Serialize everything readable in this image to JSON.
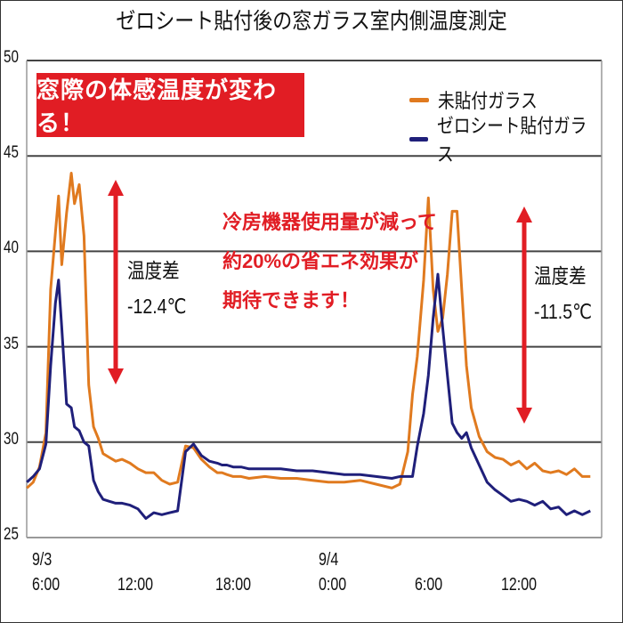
{
  "title": "ゼロシート貼付後の窓ガラス室内側温度測定",
  "banner": "窓際の体感温度が変わる！",
  "note_lines": [
    "冷房機器使用量が減って",
    "約20%の省エネ効果が",
    "期待できます！"
  ],
  "diff_left": {
    "label": "温度差",
    "value": "-12.4℃"
  },
  "diff_right": {
    "label": "温度差",
    "value": "-11.5℃"
  },
  "legend": [
    {
      "label": "未貼付ガラス",
      "color": "#e07a1f"
    },
    {
      "label": "ゼロシート貼付ガラス",
      "color": "#1f1f7a"
    }
  ],
  "colors": {
    "accent_red": "#e11d24",
    "orange": "#e07a1f",
    "navy": "#1f1f7a",
    "grid": "#444444"
  },
  "chart_data": {
    "type": "line",
    "title": "ゼロシート貼付後の窓ガラス室内側温度測定",
    "xlabel": "",
    "ylabel": "",
    "ylim": [
      25,
      50
    ],
    "yticks": [
      25,
      30,
      35,
      40,
      45,
      50
    ],
    "xtick_labels": [
      {
        "date": "9/3",
        "time": "6:00"
      },
      {
        "date": "",
        "time": "12:00"
      },
      {
        "date": "",
        "time": "18:00"
      },
      {
        "date": "9/4",
        "time": "0:00"
      },
      {
        "date": "",
        "time": "6:00"
      },
      {
        "date": "",
        "time": "12:00"
      }
    ],
    "x_unit": "hours since 9/3 6:00 (approx, x starts ~-1h)",
    "grid": true,
    "legend_position": "upper right",
    "x": [
      -1.0,
      -0.6,
      -0.2,
      0.2,
      0.5,
      0.8,
      1.0,
      1.2,
      1.5,
      1.8,
      2.0,
      2.3,
      2.6,
      2.9,
      3.2,
      3.5,
      3.8,
      4.2,
      4.6,
      5.0,
      5.5,
      6.0,
      6.5,
      7.0,
      7.5,
      8.0,
      8.5,
      9.0,
      9.5,
      10.0,
      10.5,
      11.0,
      11.3,
      11.6,
      12.0,
      12.5,
      13.0,
      14.0,
      15.0,
      16.0,
      17.0,
      18.0,
      19.0,
      20.0,
      21.0,
      22.0,
      22.5,
      23.0,
      23.3,
      23.6,
      24.0,
      24.3,
      24.6,
      24.9,
      25.2,
      25.5,
      25.8,
      26.1,
      26.4,
      26.7,
      27.0,
      27.5,
      28.0,
      28.5,
      29.0,
      29.5,
      30.0,
      30.5,
      31.0,
      31.5,
      32.0,
      32.5,
      33.0,
      33.5,
      34.0,
      34.5
    ],
    "series": [
      {
        "name": "未貼付ガラス",
        "color": "#e07a1f",
        "values": [
          27.6,
          27.9,
          28.7,
          30.5,
          38.0,
          41.0,
          42.9,
          39.3,
          42.0,
          44.1,
          42.5,
          43.5,
          40.8,
          33.0,
          30.8,
          30.2,
          29.4,
          29.2,
          29.0,
          29.1,
          28.9,
          28.6,
          28.4,
          28.4,
          28.0,
          27.8,
          27.9,
          29.8,
          29.7,
          29.1,
          28.7,
          28.4,
          28.4,
          28.3,
          28.2,
          28.2,
          28.1,
          28.2,
          28.1,
          28.1,
          28.0,
          27.9,
          27.9,
          28.0,
          27.8,
          27.6,
          27.8,
          29.5,
          32.5,
          34.5,
          38.5,
          42.8,
          38.0,
          35.8,
          36.5,
          38.8,
          42.1,
          42.1,
          38.0,
          34.0,
          31.8,
          30.3,
          29.5,
          29.2,
          29.1,
          28.8,
          29.0,
          28.6,
          28.9,
          28.5,
          28.4,
          28.5,
          28.3,
          28.6,
          28.2,
          28.2
        ]
      },
      {
        "name": "ゼロシート貼付ガラス",
        "color": "#1f1f7a",
        "values": [
          27.9,
          28.2,
          28.6,
          29.9,
          34.0,
          37.3,
          38.5,
          36.0,
          32.0,
          31.8,
          30.8,
          30.6,
          30.0,
          29.8,
          28.0,
          27.4,
          27.0,
          26.9,
          26.8,
          26.8,
          26.7,
          26.5,
          26.0,
          26.3,
          26.2,
          26.3,
          26.4,
          29.5,
          29.9,
          29.3,
          29.0,
          28.9,
          28.8,
          28.8,
          28.7,
          28.7,
          28.6,
          28.6,
          28.6,
          28.5,
          28.5,
          28.4,
          28.3,
          28.3,
          28.2,
          28.1,
          28.2,
          28.2,
          28.2,
          29.8,
          31.5,
          33.5,
          36.5,
          38.8,
          36.0,
          33.5,
          31.0,
          30.5,
          30.2,
          30.5,
          29.7,
          28.8,
          27.9,
          27.5,
          27.2,
          26.9,
          27.0,
          26.9,
          26.7,
          26.9,
          26.5,
          26.6,
          26.2,
          26.4,
          26.2,
          26.4
        ]
      }
    ],
    "annotations": [
      {
        "text": "温度差 -12.4℃",
        "type": "double-arrow",
        "color": "#e11d24"
      },
      {
        "text": "温度差 -11.5℃",
        "type": "double-arrow",
        "color": "#e11d24"
      },
      {
        "text": "窓際の体感温度が変わる！",
        "type": "banner"
      },
      {
        "text": "冷房機器使用量が減って 約20%の省エネ効果が 期待できます！",
        "type": "text"
      }
    ]
  }
}
